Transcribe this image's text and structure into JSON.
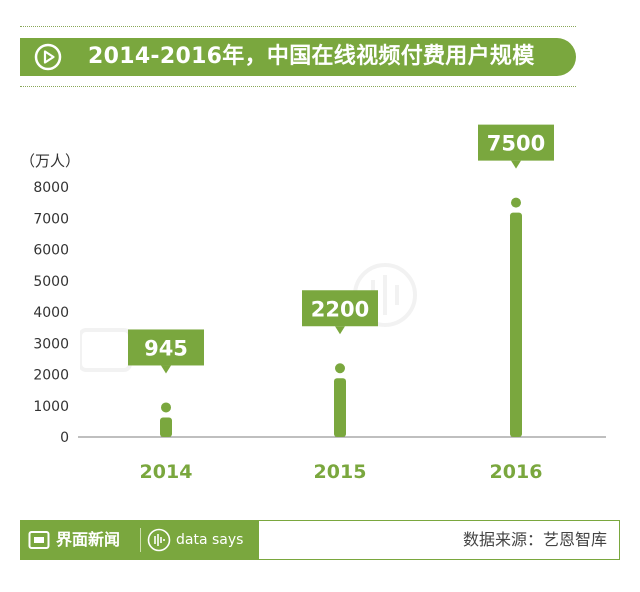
{
  "title": "2014-2016年，中国在线视频付费用户规模",
  "chart_data": {
    "type": "bar",
    "unit": "（万人）",
    "categories": [
      "2014",
      "2015",
      "2016"
    ],
    "values": [
      945,
      2200,
      7500
    ],
    "data_labels": [
      "945",
      "2200",
      "7500"
    ],
    "ylim": [
      0,
      8000
    ],
    "yticks": [
      0,
      1000,
      2000,
      3000,
      4000,
      5000,
      6000,
      7000,
      8000
    ],
    "grid": false,
    "bar_color": "#7aa73e"
  },
  "footer": {
    "brand": "界面新闻",
    "sub_brand": "data says",
    "source": "数据来源：艺恩智库"
  },
  "colors": {
    "accent": "#7aa73e",
    "text": "#333333"
  },
  "icons": {
    "title": "play-circle-icon",
    "brand": "jiemian-logo-icon",
    "sub_brand": "data-says-icon"
  }
}
